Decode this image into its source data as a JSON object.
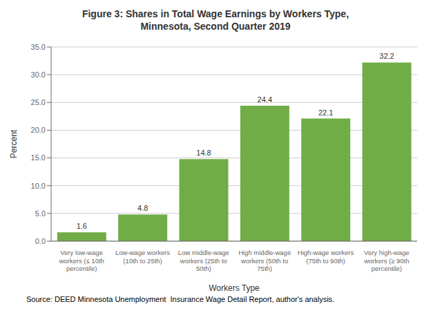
{
  "chart_data": {
    "type": "bar",
    "title": "Figure 3: Shares in Total Wage Earnings by Workers Type,\nMinnesota, Second Quarter 2019",
    "categories": [
      "Very low-wage\nworkers (≤ 10th\npercentile)",
      "Low-wage workers\n(10th to 25th)",
      "Low middle-wage\nworkers (25th to\n50th)",
      "High middle-wage\nworkers (50th to\n75th)",
      "High-wage workers\n(75th to 90th)",
      "Very high-wage\nworkers (≥ 90th\npercentile)"
    ],
    "values": [
      1.6,
      4.8,
      14.8,
      24.4,
      22.1,
      32.2
    ],
    "color": "#70AD47",
    "xlabel": "Workers Type",
    "ylabel": "Percent",
    "ylim": [
      0,
      35.0
    ],
    "yticks": [
      {
        "value": 0,
        "label": "0.0"
      },
      {
        "value": 5,
        "label": "5.0"
      },
      {
        "value": 10,
        "label": "10.0"
      },
      {
        "value": 15,
        "label": "15.0"
      },
      {
        "value": 20,
        "label": "20.0"
      },
      {
        "value": 25,
        "label": "25.0"
      },
      {
        "value": 30,
        "label": "30.0"
      },
      {
        "value": 35,
        "label": "35.0"
      }
    ],
    "grid": true,
    "data_labels": true,
    "annotations": [
      "Source: DEED Minnesota Unemployment  Insurance Wage Detail Report, author's analysis."
    ]
  }
}
